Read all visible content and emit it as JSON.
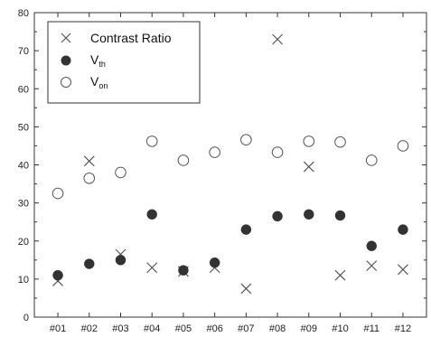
{
  "chart_data": {
    "type": "scatter",
    "title": "",
    "xlabel": "",
    "ylabel": "",
    "categories": [
      "#01",
      "#02",
      "#03",
      "#04",
      "#05",
      "#06",
      "#07",
      "#08",
      "#09",
      "#10",
      "#11",
      "#12"
    ],
    "ylim": [
      0,
      80
    ],
    "yticks": [
      0,
      10,
      20,
      30,
      40,
      50,
      60,
      70,
      80
    ],
    "grid": false,
    "legend_position": "top-left",
    "series": [
      {
        "name": "Contrast Ratio",
        "marker": "x",
        "color": "#555555",
        "values": [
          9.5,
          41,
          16.5,
          13,
          12,
          13,
          7.5,
          73,
          39.5,
          11,
          13.5,
          12.5
        ]
      },
      {
        "name": "V_th",
        "marker": "filled-circle",
        "color": "#333333",
        "values": [
          11,
          14,
          15,
          27,
          12.3,
          14.3,
          23,
          26.5,
          27,
          26.7,
          18.7,
          23
        ]
      },
      {
        "name": "V_on",
        "marker": "open-circle",
        "color": "#555555",
        "values": [
          32.5,
          36.5,
          38,
          46.2,
          41.2,
          43.3,
          46.6,
          43.3,
          46.2,
          46,
          41.2,
          45
        ]
      }
    ]
  },
  "legend": [
    {
      "main": "Contrast Ratio",
      "sub": ""
    },
    {
      "main": "V",
      "sub": "th"
    },
    {
      "main": "V",
      "sub": "on"
    }
  ]
}
